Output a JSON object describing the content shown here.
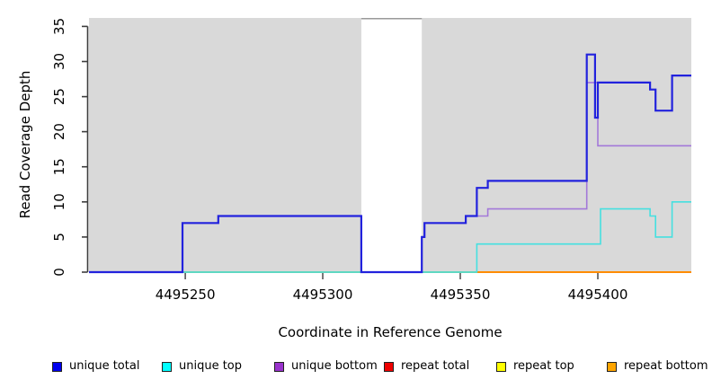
{
  "chart_data": {
    "type": "line",
    "subtype": "step",
    "title": "",
    "xlabel": "Coordinate in Reference Genome",
    "ylabel": "Read Coverage Depth",
    "xlim": [
      4495215,
      4495434
    ],
    "ylim": [
      0,
      36.2
    ],
    "x_ticks": [
      4495250,
      4495300,
      4495350,
      4495400
    ],
    "y_ticks": [
      0,
      5,
      10,
      15,
      20,
      25,
      30,
      35
    ],
    "grid": false,
    "plot_bg_color": "#d9d9d9",
    "gap_region": {
      "x_start": 4495314,
      "x_end": 4495336,
      "color": "#ffffff",
      "top_edge_color": "#9a9a9a"
    },
    "overlap_baseline": {
      "comment": "blended top/bottom lines visible at depth 0",
      "x_start": 4495249,
      "x_end": 4495356,
      "value": 0,
      "color": "#8ccf8c"
    },
    "series": [
      {
        "name": "repeat total",
        "line_color": "#dd0000",
        "width": 1.5,
        "points": [
          [
            4495215,
            0
          ],
          [
            4495434,
            0
          ]
        ]
      },
      {
        "name": "repeat top",
        "line_color": "#e8e800",
        "width": 1.5,
        "points": [
          [
            4495215,
            0
          ],
          [
            4495434,
            0
          ]
        ]
      },
      {
        "name": "repeat bottom",
        "line_color": "#ff8c00",
        "width": 2,
        "points": [
          [
            4495215,
            0
          ],
          [
            4495434,
            0
          ]
        ]
      },
      {
        "name": "unique bottom",
        "line_color": "#a379d9",
        "width": 1.6,
        "points": [
          [
            4495215,
            0
          ],
          [
            4495249,
            7
          ],
          [
            4495262,
            8
          ],
          [
            4495314,
            0
          ],
          [
            4495336,
            5
          ],
          [
            4495337,
            7
          ],
          [
            4495352,
            8
          ],
          [
            4495360,
            9
          ],
          [
            4495396,
            27
          ],
          [
            4495400,
            18
          ],
          [
            4495434,
            18
          ]
        ]
      },
      {
        "name": "unique top",
        "line_color": "#45e0e0",
        "width": 1.6,
        "points": [
          [
            4495215,
            0
          ],
          [
            4495356,
            4
          ],
          [
            4495401,
            9
          ],
          [
            4495419,
            8
          ],
          [
            4495421,
            5
          ],
          [
            4495427,
            10
          ],
          [
            4495434,
            10
          ]
        ]
      },
      {
        "name": "unique total",
        "line_color": "#2222dd",
        "width": 2.2,
        "points": [
          [
            4495215,
            0
          ],
          [
            4495249,
            7
          ],
          [
            4495262,
            8
          ],
          [
            4495314,
            0
          ],
          [
            4495336,
            5
          ],
          [
            4495337,
            7
          ],
          [
            4495352,
            8
          ],
          [
            4495356,
            12
          ],
          [
            4495360,
            13
          ],
          [
            4495396,
            31
          ],
          [
            4495399,
            22
          ],
          [
            4495400,
            27
          ],
          [
            4495419,
            26
          ],
          [
            4495421,
            23
          ],
          [
            4495427,
            28
          ],
          [
            4495434,
            28
          ]
        ]
      }
    ],
    "legend": {
      "position": "bottom",
      "items": [
        {
          "label": "unique total",
          "color": "#0000ee"
        },
        {
          "label": "unique top",
          "color": "#00ffff"
        },
        {
          "label": "unique bottom",
          "color": "#9932cc"
        },
        {
          "label": "repeat total",
          "color": "#ee0000"
        },
        {
          "label": "repeat top",
          "color": "#ffff00"
        },
        {
          "label": "repeat bottom",
          "color": "#ffa500"
        }
      ]
    },
    "axis_color": "#3d3d3d",
    "tick_label_font_px": 15
  }
}
